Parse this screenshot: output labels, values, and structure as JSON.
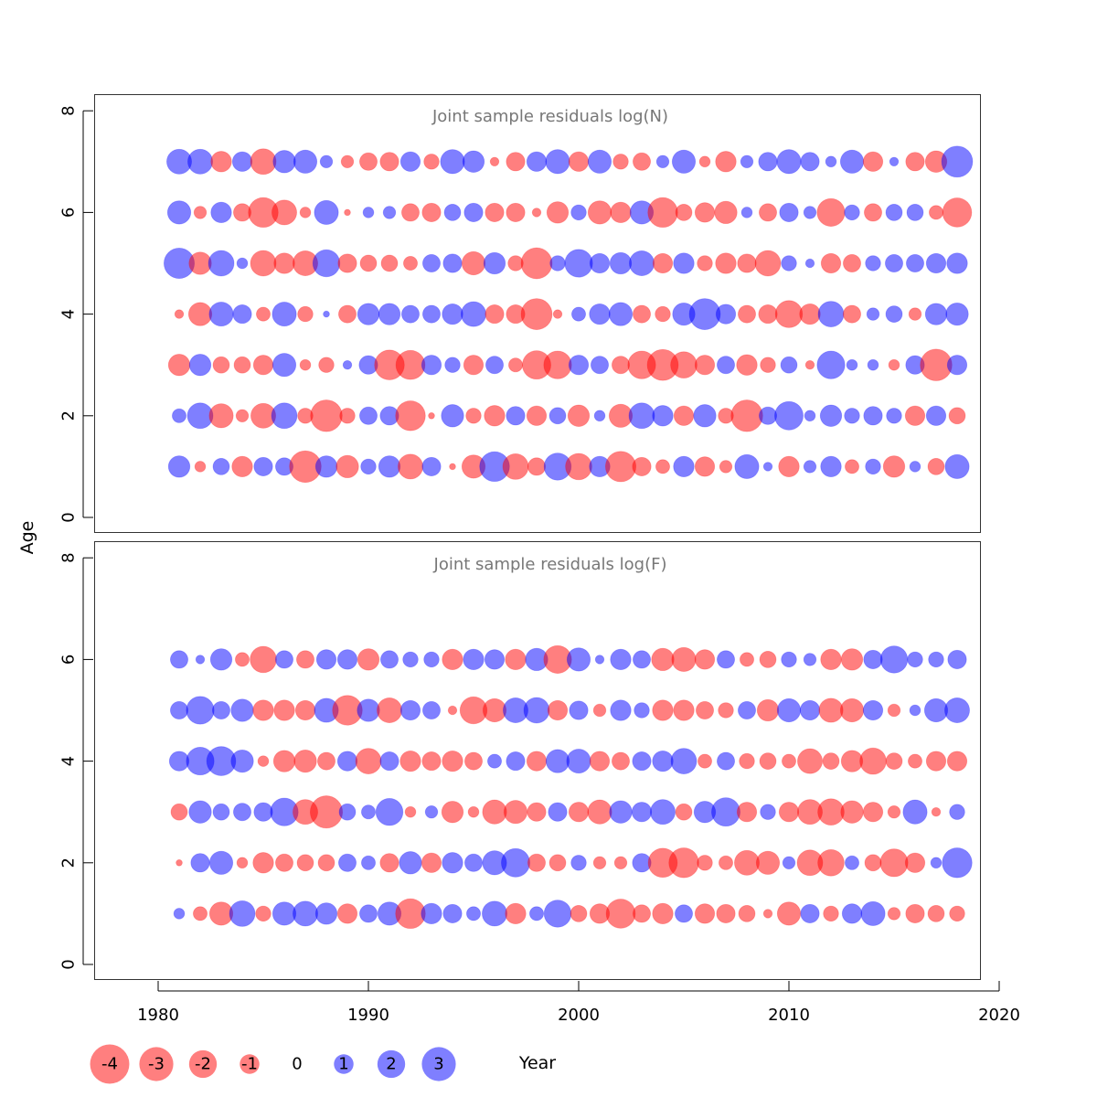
{
  "chart_data": {
    "type": "scatter",
    "ylabel": "Age",
    "xlabel": "Year",
    "x_ticks": [
      1980,
      1990,
      2000,
      2010,
      2020
    ],
    "y_ticks": [
      0,
      2,
      4,
      6,
      8
    ],
    "xlim": [
      1978.5,
      2020
    ],
    "ylim": [
      0,
      8
    ],
    "colors": {
      "positive": "#0000ff",
      "negative": "#ff0000",
      "opacity": 0.5
    },
    "years": [
      1981,
      1982,
      1983,
      1984,
      1985,
      1986,
      1987,
      1988,
      1989,
      1990,
      1991,
      1992,
      1993,
      1994,
      1995,
      1996,
      1997,
      1998,
      1999,
      2000,
      2001,
      2002,
      2003,
      2004,
      2005,
      2006,
      2007,
      2008,
      2009,
      2010,
      2011,
      2012,
      2013,
      2014,
      2015,
      2016,
      2017,
      2018
    ],
    "legend": {
      "values": [
        -4,
        -3,
        -2,
        -1,
        0,
        1,
        2,
        3
      ],
      "labels": [
        "-4",
        "-3",
        "-2",
        "-1",
        "0",
        "1",
        "2",
        "3"
      ]
    },
    "panels": [
      {
        "title": "Joint sample residuals log(N)",
        "ages": [
          1,
          2,
          3,
          4,
          5,
          6,
          7
        ],
        "residuals": {
          "1": [
            1.2,
            -0.3,
            0.7,
            -1.1,
            0.9,
            0.8,
            -2.6,
            1.2,
            -1.3,
            0.6,
            1.2,
            -1.6,
            0.9,
            -0.1,
            -1.4,
            2.3,
            -1.7,
            -0.8,
            1.9,
            -1.8,
            1.1,
            -2.4,
            -0.9,
            -0.5,
            1.1,
            -1.0,
            -0.4,
            1.5,
            0.2,
            -1.1,
            0.4,
            1.1,
            -0.5,
            0.6,
            -1.2,
            0.3,
            -0.7,
            1.5
          ],
          "2": [
            0.5,
            1.7,
            -1.5,
            -0.4,
            -1.6,
            1.7,
            -0.6,
            -2.6,
            -0.6,
            0.8,
            0.9,
            -2.3,
            -0.1,
            1.3,
            -0.6,
            -1.1,
            0.9,
            -1.0,
            0.7,
            -1.2,
            0.3,
            -1.4,
            1.7,
            1.1,
            -1.0,
            1.3,
            -0.6,
            -2.6,
            0.8,
            2.1,
            0.3,
            1.2,
            0.6,
            0.9,
            0.6,
            -1.0,
            1.0,
            -0.7
          ],
          "3": [
            -1.2,
            1.2,
            -0.7,
            -0.7,
            -1.0,
            1.4,
            -0.3,
            -0.6,
            0.2,
            0.9,
            -2.3,
            -2.2,
            1.0,
            0.6,
            -1.0,
            0.8,
            -0.5,
            -2.1,
            -2.0,
            1.0,
            0.8,
            -0.8,
            -2.0,
            -2.5,
            -1.8,
            -1.0,
            0.8,
            -1.1,
            -0.6,
            0.7,
            -0.2,
            2.0,
            0.3,
            0.3,
            -0.3,
            0.9,
            -2.6,
            1.0
          ],
          "4": [
            -0.2,
            -1.4,
            1.5,
            0.9,
            -0.5,
            1.5,
            -0.6,
            0.1,
            -0.8,
            1.2,
            1.2,
            0.8,
            0.8,
            1.1,
            1.6,
            -0.9,
            -0.9,
            -2.5,
            -0.2,
            0.5,
            1.1,
            1.4,
            -0.8,
            -0.6,
            1.3,
            2.5,
            1.0,
            -0.8,
            -0.9,
            -1.9,
            -1.1,
            1.7,
            -0.8,
            0.4,
            0.7,
            -0.4,
            1.2,
            1.3
          ],
          "5": [
            2.4,
            -1.3,
            1.7,
            0.3,
            -1.7,
            -1.1,
            -1.6,
            1.9,
            -0.9,
            -0.7,
            -0.7,
            -0.5,
            0.8,
            0.9,
            -1.4,
            1.2,
            -0.6,
            -2.5,
            0.6,
            2.0,
            1.0,
            1.2,
            1.6,
            -1.0,
            1.1,
            -0.6,
            -1.1,
            -0.9,
            -1.7,
            0.6,
            0.2,
            -1.0,
            -0.8,
            0.6,
            0.8,
            0.8,
            1.0,
            1.1
          ],
          "6": [
            1.4,
            -0.4,
            1.1,
            -0.8,
            -2.3,
            -1.6,
            -0.3,
            1.5,
            -0.1,
            0.3,
            0.4,
            -0.8,
            -0.9,
            0.7,
            0.9,
            -0.9,
            -0.9,
            -0.2,
            -1.2,
            0.6,
            -1.4,
            -1.1,
            1.4,
            -2.3,
            -0.7,
            -1.0,
            -1.3,
            0.3,
            -0.8,
            0.9,
            0.4,
            -2.0,
            0.6,
            -0.8,
            0.7,
            0.7,
            -0.5,
            -2.2
          ],
          "7": [
            1.6,
            1.6,
            -1.1,
            1.0,
            -1.7,
            1.3,
            1.4,
            0.4,
            -0.4,
            -0.8,
            -0.9,
            1.0,
            -0.6,
            1.5,
            1.2,
            -0.2,
            -0.9,
            1.0,
            1.5,
            -1.0,
            1.4,
            -0.6,
            -0.8,
            0.4,
            1.4,
            -0.3,
            -1.1,
            0.4,
            0.9,
            1.5,
            0.9,
            0.3,
            1.4,
            -1.0,
            0.2,
            -0.9,
            -1.2,
            2.5
          ]
        }
      },
      {
        "title": "Joint sample residuals log(F)",
        "ages": [
          1,
          2,
          3,
          4,
          5,
          6
        ],
        "residuals": {
          "1": [
            0.3,
            -0.5,
            -1.4,
            1.7,
            -0.6,
            1.4,
            1.6,
            1.2,
            -1.0,
            0.8,
            1.4,
            -2.3,
            1.1,
            0.9,
            0.5,
            1.6,
            -1.1,
            0.5,
            1.9,
            -0.7,
            -1.0,
            -2.2,
            -0.8,
            -1.1,
            0.8,
            -1.0,
            -0.9,
            -0.7,
            -0.2,
            -1.4,
            0.9,
            -0.6,
            1.0,
            1.5,
            -0.4,
            -0.9,
            -0.7,
            -0.6
          ],
          "2": [
            -0.1,
            0.9,
            1.4,
            -0.3,
            -1.1,
            -0.8,
            -0.7,
            -0.7,
            0.8,
            0.5,
            -0.9,
            1.3,
            -1.0,
            1.1,
            0.8,
            1.5,
            2.1,
            -0.8,
            -0.7,
            0.6,
            -0.4,
            -0.4,
            0.9,
            -2.2,
            -2.3,
            -0.6,
            -0.5,
            -1.6,
            -1.4,
            0.4,
            -1.7,
            -1.8,
            0.5,
            -0.7,
            -2.0,
            -1.0,
            0.3,
            2.3
          ],
          "3": [
            -0.7,
            1.3,
            0.7,
            0.8,
            0.9,
            2.0,
            -1.6,
            -2.7,
            0.7,
            0.5,
            1.9,
            -0.3,
            0.4,
            -1.2,
            -0.3,
            -1.5,
            -1.4,
            -0.9,
            0.9,
            -1.0,
            -1.5,
            1.3,
            1.0,
            1.6,
            -0.7,
            1.2,
            2.1,
            -1.0,
            0.6,
            -1.0,
            -1.6,
            -1.8,
            -1.3,
            -1.0,
            -0.4,
            1.5,
            -0.2,
            0.6
          ],
          "4": [
            1.0,
            2.0,
            2.2,
            1.3,
            -0.3,
            -1.2,
            -1.3,
            -0.8,
            1.0,
            -1.7,
            0.9,
            -1.1,
            -0.9,
            -1.1,
            -0.8,
            0.5,
            0.9,
            -1.0,
            1.4,
            1.5,
            -1.0,
            -0.8,
            0.9,
            1.1,
            1.7,
            -0.5,
            0.8,
            -0.6,
            -0.7,
            -0.5,
            -1.6,
            -0.7,
            -1.2,
            -1.8,
            -0.7,
            -0.5,
            -1.0,
            -1.0
          ],
          "5": [
            0.8,
            2.0,
            0.8,
            1.3,
            -1.1,
            -1.1,
            -1.0,
            1.5,
            -2.3,
            1.3,
            -1.6,
            1.0,
            0.8,
            -0.2,
            -1.9,
            -1.4,
            1.6,
            1.7,
            -1.0,
            0.9,
            -0.4,
            1.1,
            0.6,
            -1.1,
            -1.1,
            -0.8,
            -0.6,
            0.8,
            -1.2,
            1.4,
            1.0,
            -1.5,
            -1.4,
            1.0,
            -0.4,
            0.3,
            1.4,
            1.6
          ],
          "6": [
            0.8,
            0.2,
            1.2,
            -0.5,
            -1.8,
            0.8,
            -0.8,
            1.0,
            1.0,
            -1.2,
            0.8,
            0.6,
            0.6,
            -1.1,
            1.1,
            1.0,
            -1.1,
            1.3,
            -2.0,
            1.4,
            0.2,
            1.1,
            0.8,
            -1.3,
            -1.5,
            -1.0,
            0.8,
            -0.5,
            -0.7,
            0.6,
            0.4,
            -1.1,
            -1.2,
            0.9,
            1.9,
            0.6,
            0.6,
            0.9
          ]
        }
      }
    ]
  }
}
